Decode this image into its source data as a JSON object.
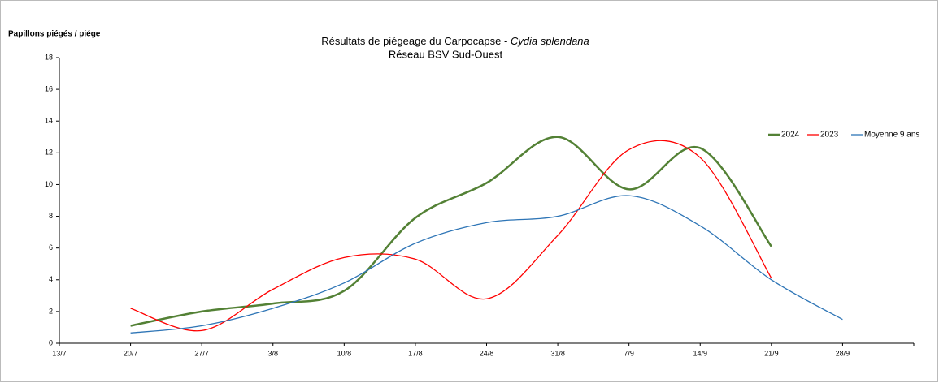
{
  "chart_data": {
    "type": "line",
    "title": {
      "text": "Résultats de piégeage du Carpocapse -",
      "species": "Cydia splendana"
    },
    "subtitle": "Réseau BSV Sud-Ouest",
    "y_label": "Papillons piégés / piége",
    "categories": [
      "13/7",
      "20/7",
      "27/7",
      "3/8",
      "10/8",
      "17/8",
      "24/8",
      "31/8",
      "7/9",
      "14/9",
      "21/9",
      "28/9",
      null
    ],
    "series": [
      {
        "name": "2024",
        "color": "#538135",
        "width": 2.5,
        "values": [
          null,
          1.1,
          2.0,
          2.5,
          3.3,
          7.9,
          10.1,
          13.0,
          9.7,
          12.3,
          6.1,
          null,
          null
        ]
      },
      {
        "name": "2023",
        "color": "#ff0000",
        "width": 1.3,
        "values": [
          null,
          2.2,
          0.8,
          3.4,
          5.4,
          5.3,
          2.8,
          6.8,
          12.2,
          11.7,
          4.1,
          null,
          null
        ]
      },
      {
        "name": "Moyenne 9 ans",
        "color": "#2e75b6",
        "width": 1.3,
        "values": [
          null,
          0.65,
          1.1,
          2.2,
          3.8,
          6.3,
          7.6,
          8.0,
          9.3,
          7.4,
          4.0,
          1.5,
          null
        ]
      }
    ],
    "ylim": [
      0,
      18
    ],
    "yticks": [
      0,
      2,
      4,
      6,
      8,
      10,
      12,
      14,
      16,
      18
    ],
    "legend": "top-right"
  }
}
